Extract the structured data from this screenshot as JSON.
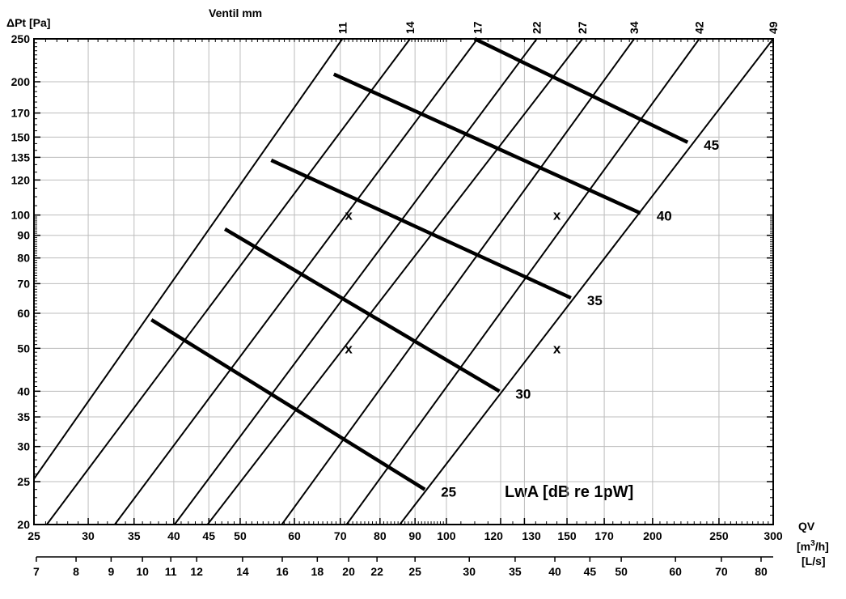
{
  "chart_data": {
    "type": "line",
    "scale": "log-log",
    "title": "",
    "ylabel": "ΔPt [Pa]",
    "xlabel": "QV",
    "xlabel_units": [
      "[m",
      "3",
      "/h]",
      "[L/s]"
    ],
    "top_axis_label": "Ventil mm",
    "annotation_title": "LwA [dB re 1pW]",
    "grid": true,
    "xlim": [
      25,
      300
    ],
    "ylim": [
      20,
      250
    ],
    "x_ticks": [
      {
        "value": 25,
        "label": "25"
      },
      {
        "value": 30,
        "label": "30"
      },
      {
        "value": 35,
        "label": "35"
      },
      {
        "value": 40,
        "label": "40"
      },
      {
        "value": 45,
        "label": "45"
      },
      {
        "value": 50,
        "label": "50"
      },
      {
        "value": 60,
        "label": "60"
      },
      {
        "value": 70,
        "label": "70"
      },
      {
        "value": 80,
        "label": "80"
      },
      {
        "value": 90,
        "label": "90"
      },
      {
        "value": 100,
        "label": "100"
      },
      {
        "value": 120,
        "label": "120"
      },
      {
        "value": 130,
        "label": "130"
      },
      {
        "value": 150,
        "label": "150"
      },
      {
        "value": 170,
        "label": "170"
      },
      {
        "value": 200,
        "label": "200"
      },
      {
        "value": 250,
        "label": "250"
      },
      {
        "value": 300,
        "label": "300"
      }
    ],
    "ls_ticks": [
      {
        "value": 7,
        "label": "7"
      },
      {
        "value": 8,
        "label": "8"
      },
      {
        "value": 9,
        "label": "9"
      },
      {
        "value": 10,
        "label": "10"
      },
      {
        "value": 11,
        "label": "11"
      },
      {
        "value": 12,
        "label": "12"
      },
      {
        "value": 14,
        "label": "14"
      },
      {
        "value": 16,
        "label": "16"
      },
      {
        "value": 18,
        "label": "18"
      },
      {
        "value": 20,
        "label": "20"
      },
      {
        "value": 22,
        "label": "22"
      },
      {
        "value": 25,
        "label": "25"
      },
      {
        "value": 30,
        "label": "30"
      },
      {
        "value": 35,
        "label": "35"
      },
      {
        "value": 40,
        "label": "40"
      },
      {
        "value": 45,
        "label": "45"
      },
      {
        "value": 50,
        "label": "50"
      },
      {
        "value": 60,
        "label": "60"
      },
      {
        "value": 70,
        "label": "70"
      },
      {
        "value": 80,
        "label": "80"
      }
    ],
    "y_ticks": [
      {
        "value": 20,
        "label": "20"
      },
      {
        "value": 25,
        "label": "25"
      },
      {
        "value": 30,
        "label": "30"
      },
      {
        "value": 35,
        "label": "35"
      },
      {
        "value": 40,
        "label": "40"
      },
      {
        "value": 50,
        "label": "50"
      },
      {
        "value": 60,
        "label": "60"
      },
      {
        "value": 70,
        "label": "70"
      },
      {
        "value": 80,
        "label": "80"
      },
      {
        "value": 90,
        "label": "90"
      },
      {
        "value": 100,
        "label": "100"
      },
      {
        "value": 120,
        "label": "120"
      },
      {
        "value": 135,
        "label": "135"
      },
      {
        "value": 150,
        "label": "150"
      },
      {
        "value": 170,
        "label": "170"
      },
      {
        "value": 200,
        "label": "200"
      },
      {
        "value": 250,
        "label": "250"
      }
    ],
    "series": [
      {
        "name": "11",
        "points": [
          [
            24.2,
            23.6
          ],
          [
            70.5,
            250
          ]
        ]
      },
      {
        "name": "14",
        "points": [
          [
            26.1,
            20
          ],
          [
            88.5,
            250
          ]
        ]
      },
      {
        "name": "17",
        "points": [
          [
            32.8,
            20
          ],
          [
            111,
            250
          ]
        ]
      },
      {
        "name": "22",
        "points": [
          [
            40.1,
            20
          ],
          [
            135.5,
            250
          ]
        ]
      },
      {
        "name": "27",
        "points": [
          [
            44.8,
            20
          ],
          [
            158,
            250
          ]
        ]
      },
      {
        "name": "34",
        "points": [
          [
            57.5,
            20
          ],
          [
            188,
            250
          ]
        ]
      },
      {
        "name": "42",
        "points": [
          [
            71.5,
            20
          ],
          [
            234,
            250
          ]
        ]
      },
      {
        "name": "49",
        "points": [
          [
            85.5,
            20
          ],
          [
            300,
            250
          ]
        ]
      }
    ],
    "sound_lines": [
      {
        "name": "25",
        "label": "25",
        "points": [
          [
            37.1,
            58
          ],
          [
            93,
            24
          ]
        ]
      },
      {
        "name": "30",
        "label": "30",
        "points": [
          [
            47.5,
            93
          ],
          [
            119.5,
            40
          ]
        ]
      },
      {
        "name": "35",
        "label": "35",
        "points": [
          [
            55.5,
            133
          ],
          [
            152,
            65
          ]
        ]
      },
      {
        "name": "40",
        "label": "40",
        "points": [
          [
            68.5,
            208
          ],
          [
            192,
            101
          ]
        ]
      },
      {
        "name": "45",
        "label": "45",
        "points": [
          [
            110,
            250
          ],
          [
            225,
            146
          ]
        ]
      }
    ],
    "markers": [
      {
        "label": "x",
        "x": 72,
        "y": 100
      },
      {
        "label": "x",
        "x": 145,
        "y": 100
      },
      {
        "label": "x",
        "x": 72,
        "y": 50
      },
      {
        "label": "x",
        "x": 145,
        "y": 50
      }
    ]
  }
}
